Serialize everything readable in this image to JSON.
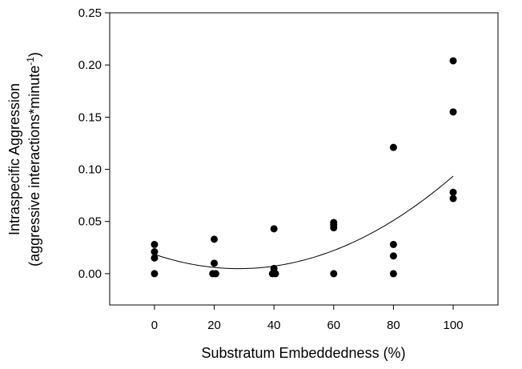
{
  "chart_data": {
    "type": "scatter",
    "title": "",
    "xlabel": "Substratum Embeddedness (%)",
    "ylabel_line1": "Intraspecific Aggression",
    "ylabel_line2_prefix": "(aggressive interactions*minute",
    "ylabel_line2_sup": "-1",
    "ylabel_line2_suffix": ")",
    "xlim": [
      -15,
      115
    ],
    "ylim": [
      -0.03,
      0.25
    ],
    "x_ticks": [
      0,
      20,
      40,
      60,
      80,
      100
    ],
    "x_tick_labels": [
      "0",
      "20",
      "40",
      "60",
      "80",
      "100"
    ],
    "y_ticks": [
      0.0,
      0.05,
      0.1,
      0.15,
      0.2,
      0.25
    ],
    "y_tick_labels": [
      "0.00",
      "0.05",
      "0.10",
      "0.15",
      "0.20",
      "0.25"
    ],
    "grid": false,
    "series": [
      {
        "points": [
          {
            "x": 0,
            "y": 0.028
          },
          {
            "x": 0,
            "y": 0.021
          },
          {
            "x": 0,
            "y": 0.015
          },
          {
            "x": 0,
            "y": 0.0
          },
          {
            "x": 20,
            "y": 0.033
          },
          {
            "x": 20,
            "y": 0.01
          },
          {
            "x": 19.5,
            "y": 0.0
          },
          {
            "x": 20.5,
            "y": 0.0
          },
          {
            "x": 40,
            "y": 0.043
          },
          {
            "x": 40,
            "y": 0.005
          },
          {
            "x": 39.5,
            "y": 0.0
          },
          {
            "x": 40.5,
            "y": 0.0
          },
          {
            "x": 60,
            "y": 0.049
          },
          {
            "x": 60,
            "y": 0.047
          },
          {
            "x": 60,
            "y": 0.044
          },
          {
            "x": 60,
            "y": 0.0
          },
          {
            "x": 80,
            "y": 0.121
          },
          {
            "x": 80,
            "y": 0.028
          },
          {
            "x": 80,
            "y": 0.017
          },
          {
            "x": 80,
            "y": 0.0
          },
          {
            "x": 100,
            "y": 0.204
          },
          {
            "x": 100,
            "y": 0.155
          },
          {
            "x": 100,
            "y": 0.078
          },
          {
            "x": 100,
            "y": 0.072
          }
        ],
        "color": "#000000"
      }
    ],
    "fit": {
      "type": "quadratic",
      "coefficients": {
        "a": 1.72e-05,
        "b": -0.00097,
        "c": 0.0185
      },
      "x_range": [
        0,
        100
      ],
      "color": "#000000"
    }
  }
}
